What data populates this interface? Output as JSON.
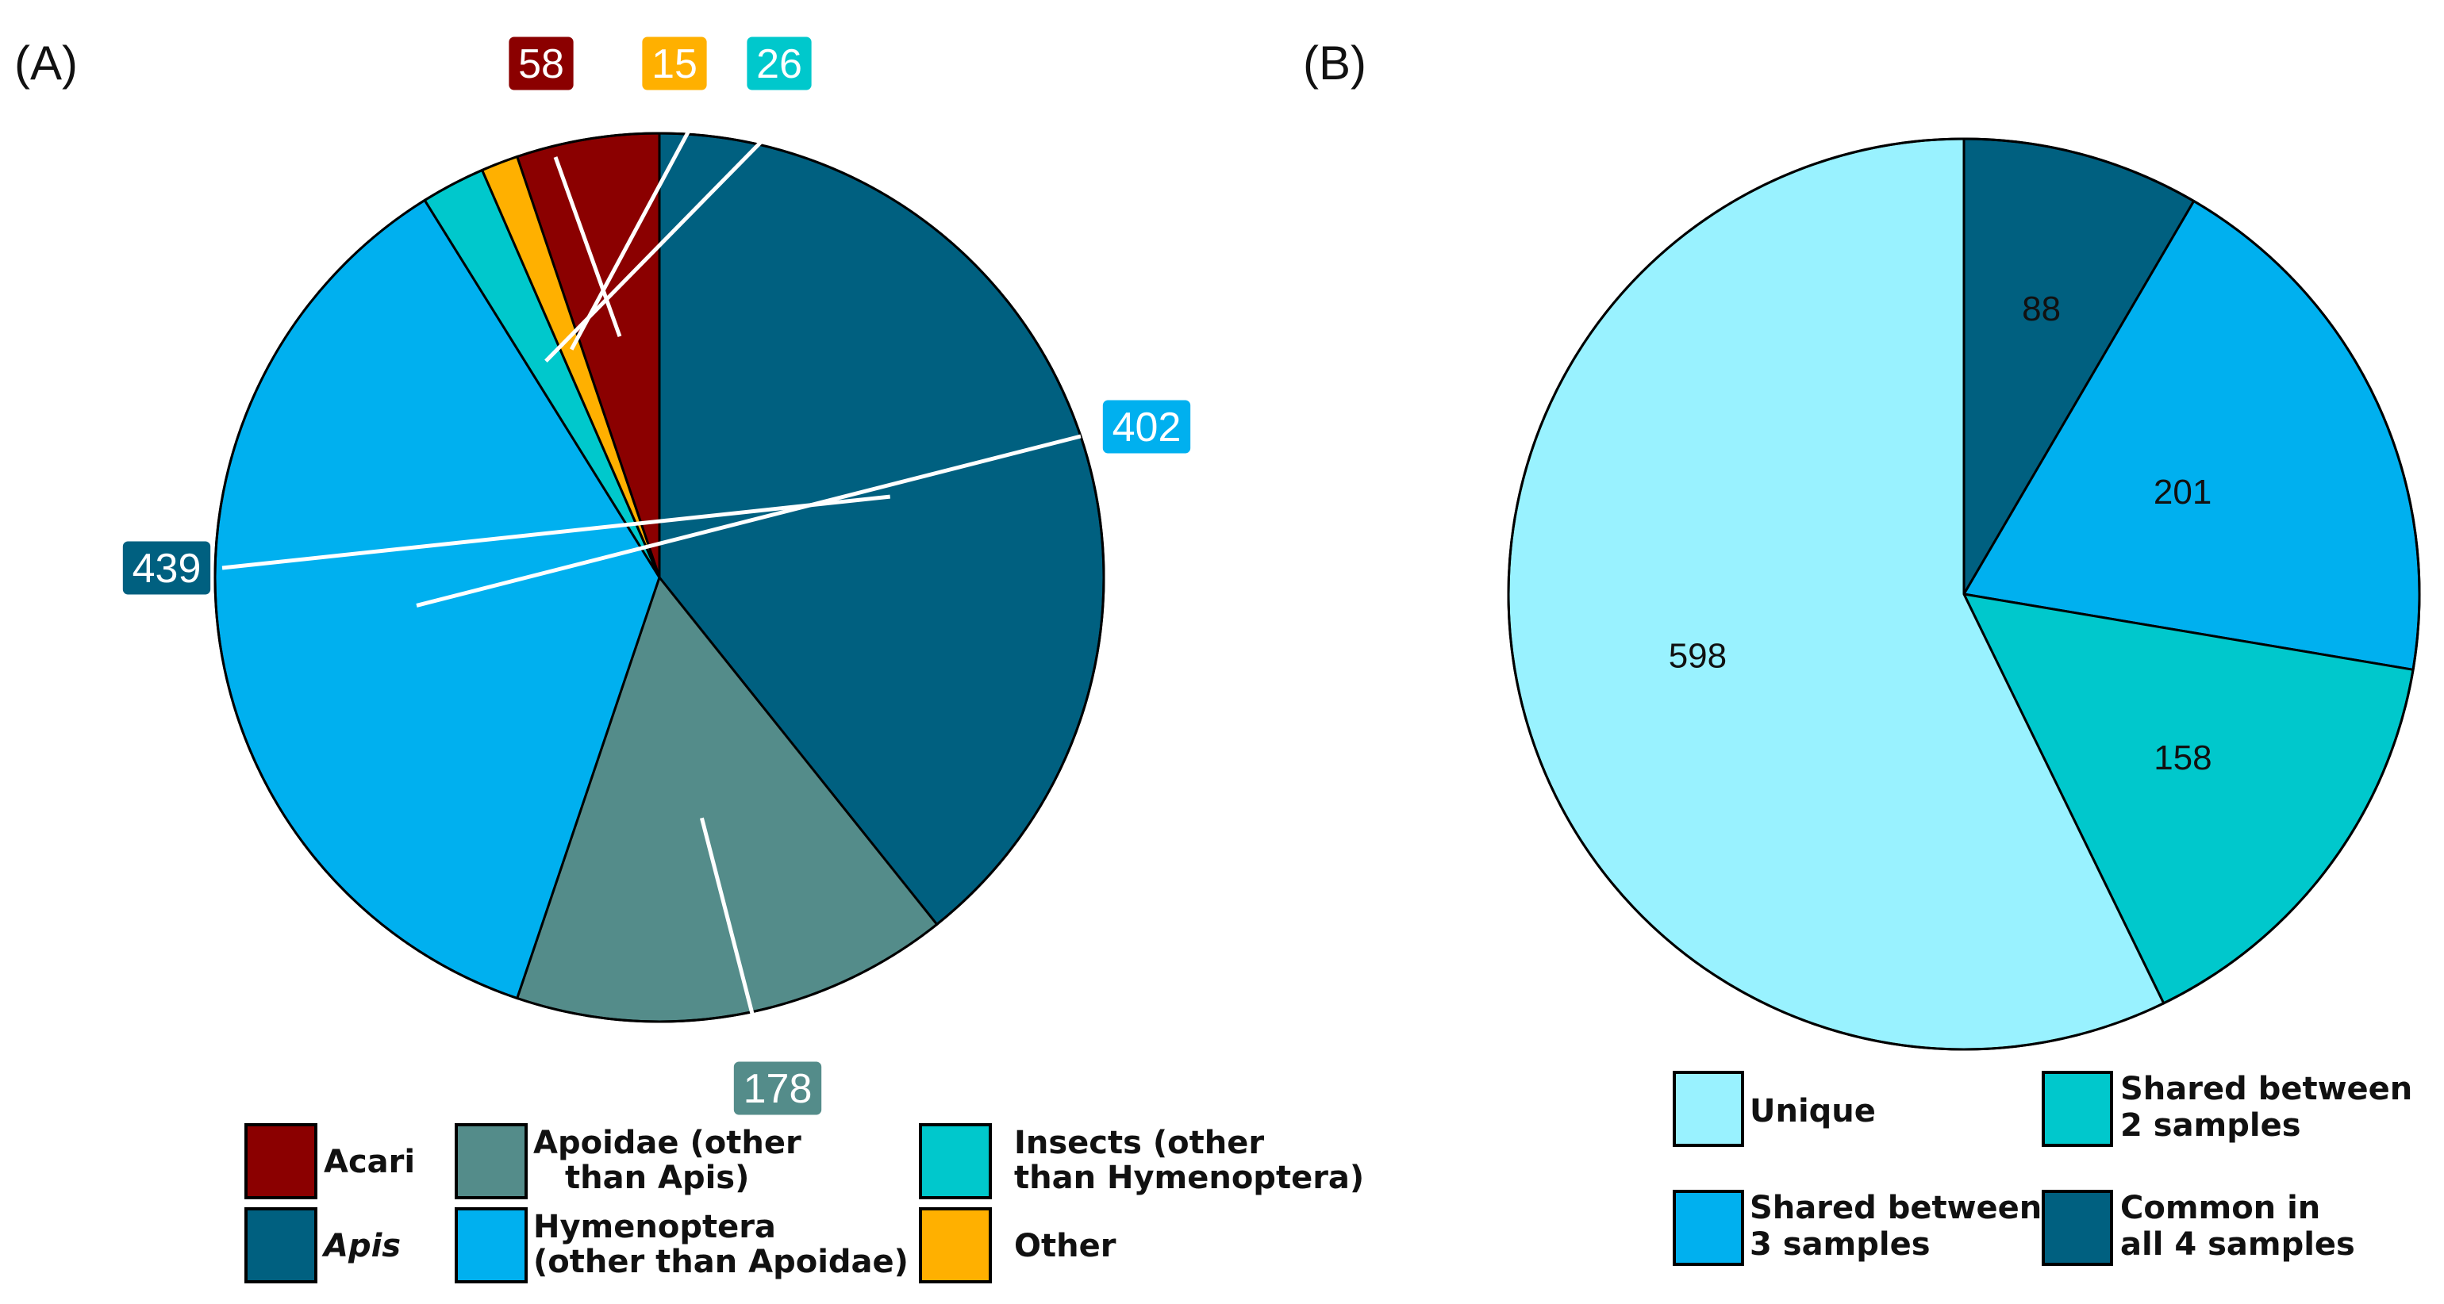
{
  "colors": {
    "acari": "#8b0000",
    "apis": "#006080",
    "apoidae": "#548c8a",
    "hymenoptera": "#00b0ef",
    "insects": "#00c8cc",
    "other": "#ffb000",
    "unique": "#99f2ff",
    "shared2": "#00c8cc",
    "shared3": "#00b0ef",
    "common4": "#006080"
  },
  "chart_data": [
    {
      "type": "pie",
      "panel_label": "(A)",
      "slices": [
        {
          "key": "acari",
          "label": "Acari",
          "value": 58,
          "value_label": "58",
          "color": "#8b0000"
        },
        {
          "key": "apis",
          "label": "Apis",
          "value": 439,
          "value_label": "439",
          "color": "#006080"
        },
        {
          "key": "apoidae",
          "label": "Apoidae (other than Apis)",
          "value": 178,
          "value_label": "178",
          "color": "#548c8a"
        },
        {
          "key": "hymenoptera",
          "label": "Hymenoptera (other than Apoidae)",
          "value": 402,
          "value_label": "402",
          "color": "#00b0ef"
        },
        {
          "key": "insects",
          "label": "Insects (other than Hymenoptera)",
          "value": 26,
          "value_label": "26",
          "color": "#00c8cc"
        },
        {
          "key": "other",
          "label": "Other",
          "value": 15,
          "value_label": "15",
          "color": "#ffb000"
        }
      ],
      "legend": [
        {
          "key": "acari",
          "lines": [
            "Acari"
          ],
          "italic": false,
          "color": "#8b0000"
        },
        {
          "key": "apis",
          "lines": [
            "Apis"
          ],
          "italic": true,
          "color": "#006080"
        },
        {
          "key": "apoidae",
          "lines": [
            "Apoidae (other",
            "than Apis)"
          ],
          "italic": false,
          "color": "#548c8a"
        },
        {
          "key": "hymenoptera",
          "lines": [
            "Hymenoptera",
            "(other than Apoidae)"
          ],
          "italic": false,
          "color": "#00b0ef"
        },
        {
          "key": "insects",
          "lines": [
            "Insects (other",
            "than Hymenoptera)"
          ],
          "italic": false,
          "color": "#00c8cc"
        },
        {
          "key": "other",
          "lines": [
            "Other"
          ],
          "italic": false,
          "color": "#ffb000"
        }
      ]
    },
    {
      "type": "pie",
      "panel_label": "(B)",
      "slices": [
        {
          "key": "common4",
          "label": "Common in all 4 samples",
          "value": 88,
          "value_label": "88",
          "color": "#006080"
        },
        {
          "key": "shared3",
          "label": "Shared between 3 samples",
          "value": 201,
          "value_label": "201",
          "color": "#00b0ef"
        },
        {
          "key": "shared2",
          "label": "Shared between 2 samples",
          "value": 158,
          "value_label": "158",
          "color": "#00c8cc"
        },
        {
          "key": "unique",
          "label": "Unique",
          "value": 598,
          "value_label": "598",
          "color": "#99f2ff"
        }
      ],
      "legend": [
        {
          "key": "unique",
          "lines": [
            "Unique"
          ],
          "italic": false,
          "color": "#99f2ff"
        },
        {
          "key": "shared2",
          "lines": [
            "Shared between",
            "2 samples"
          ],
          "italic": false,
          "color": "#00c8cc"
        },
        {
          "key": "shared3",
          "lines": [
            "Shared between",
            "3 samples"
          ],
          "italic": false,
          "color": "#00b0ef"
        },
        {
          "key": "common4",
          "lines": [
            "Common in",
            "all 4 samples"
          ],
          "italic": false,
          "color": "#006080"
        }
      ]
    }
  ]
}
